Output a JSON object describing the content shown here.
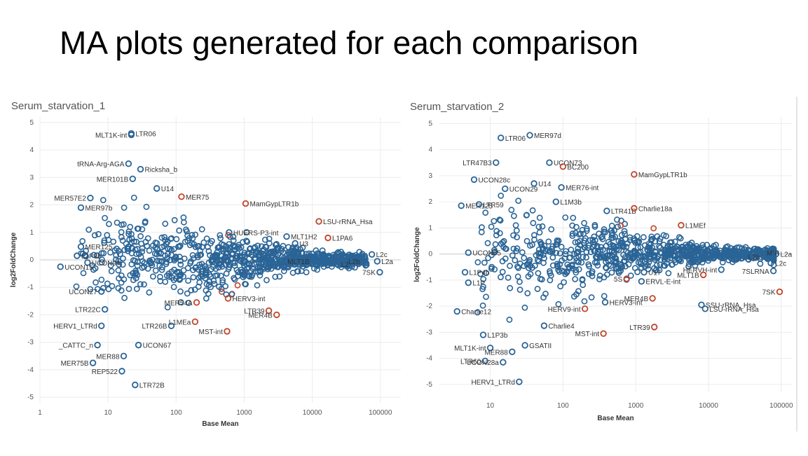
{
  "slide": {
    "title": "MA plots generated for each comparison"
  },
  "colors": {
    "not_significant": "#2a6496",
    "significant": "#c0452b"
  },
  "chart_data": [
    {
      "type": "scatter",
      "title": "Serum_starvation_1",
      "xlabel": "Base Mean",
      "ylabel": "log2FoldChange",
      "x_scale": "log",
      "xlim": [
        1,
        200000
      ],
      "ylim": [
        -5.2,
        5.2
      ],
      "x_ticks": [
        1,
        10,
        100,
        1000,
        10000,
        100000
      ],
      "x_tick_labels": [
        "1",
        "10",
        "100",
        "1000",
        "10000",
        "100000"
      ],
      "y_ticks": [
        5,
        4,
        3,
        2,
        1,
        0,
        -1,
        -2,
        -3,
        -4,
        -5
      ],
      "grid": true,
      "labeled_points": [
        {
          "label": "LTR06",
          "x": 22,
          "y": 4.6,
          "sig": false
        },
        {
          "label": "MLT1K-int",
          "x": 22,
          "y": 4.55,
          "sig": false
        },
        {
          "label": "tRNA-Arg-AGA",
          "x": 20,
          "y": 3.5,
          "sig": false
        },
        {
          "label": "Ricksha_b",
          "x": 30,
          "y": 3.3,
          "sig": false
        },
        {
          "label": "MER101B",
          "x": 23,
          "y": 2.95,
          "sig": false
        },
        {
          "label": "MER75",
          "x": 120,
          "y": 2.3,
          "sig": true
        },
        {
          "label": "MER57E2",
          "x": 5.5,
          "y": 2.25,
          "sig": false
        },
        {
          "label": "U14",
          "x": 52,
          "y": 2.6,
          "sig": false
        },
        {
          "label": "MamGypLTR1b",
          "x": 1050,
          "y": 2.05,
          "sig": true
        },
        {
          "label": "MER97b",
          "x": 4,
          "y": 1.9,
          "sig": false
        },
        {
          "label": "HUERS-P3-int",
          "x": 600,
          "y": 1.0,
          "sig": false
        },
        {
          "label": "LSU-rRNA_Hsa",
          "x": 12500,
          "y": 1.4,
          "sig": true
        },
        {
          "label": "MLT1H2",
          "x": 4200,
          "y": 0.85,
          "sig": false
        },
        {
          "label": "U3",
          "x": 5600,
          "y": 0.6,
          "sig": false
        },
        {
          "label": "L1PA6",
          "x": 17000,
          "y": 0.8,
          "sig": true
        },
        {
          "label": "MER125",
          "x": 4,
          "y": 0.48,
          "sig": false
        },
        {
          "label": "L2c",
          "x": 75000,
          "y": 0.2,
          "sig": false
        },
        {
          "label": "L1P3b",
          "x": 3.5,
          "y": 0.15,
          "sig": false
        },
        {
          "label": "L2a",
          "x": 90000,
          "y": -0.05,
          "sig": false
        },
        {
          "label": "UCON94",
          "x": 5,
          "y": -0.1,
          "sig": false
        },
        {
          "label": "UCON15",
          "x": 2,
          "y": -0.25,
          "sig": false
        },
        {
          "label": "L2b",
          "x": 58000,
          "y": -0.05,
          "sig": false
        },
        {
          "label": "MLT1B",
          "x": 10500,
          "y": -0.05,
          "sig": false
        },
        {
          "label": "L2",
          "x": 23000,
          "y": -0.15,
          "sig": false
        },
        {
          "label": "7SK",
          "x": 98000,
          "y": -0.45,
          "sig": false
        },
        {
          "label": "UCON27",
          "x": 8,
          "y": -1.15,
          "sig": false
        },
        {
          "label": "HERV3-int",
          "x": 580,
          "y": -1.4,
          "sig": true
        },
        {
          "label": "LTR22C",
          "x": 9,
          "y": -1.8,
          "sig": false
        },
        {
          "label": "MER54A",
          "x": 200,
          "y": -1.55,
          "sig": true
        },
        {
          "label": "LTR39",
          "x": 2300,
          "y": -1.85,
          "sig": true
        },
        {
          "label": "MER4B",
          "x": 3000,
          "y": -2.0,
          "sig": true
        },
        {
          "label": "HERV1_LTRd",
          "x": 8,
          "y": -2.4,
          "sig": false
        },
        {
          "label": "LTR26B",
          "x": 85,
          "y": -2.4,
          "sig": false
        },
        {
          "label": "L1MEa",
          "x": 190,
          "y": -2.25,
          "sig": true
        },
        {
          "label": "MST-int",
          "x": 560,
          "y": -2.6,
          "sig": true
        },
        {
          "label": "UCON67",
          "x": 28,
          "y": -3.1,
          "sig": false
        },
        {
          "label": "_CATTC_n",
          "x": 7,
          "y": -3.1,
          "sig": false
        },
        {
          "label": "MER88",
          "x": 17,
          "y": -3.5,
          "sig": false
        },
        {
          "label": "MER75B",
          "x": 6,
          "y": -3.75,
          "sig": false
        },
        {
          "label": "REP522",
          "x": 16,
          "y": -4.05,
          "sig": false
        },
        {
          "label": "LTR72B",
          "x": 25,
          "y": -4.55,
          "sig": false
        }
      ]
    },
    {
      "type": "scatter",
      "title": "Serum_starvation_2",
      "xlabel": "Base Mean",
      "ylabel": "log2FoldChange",
      "x_scale": "log",
      "xlim": [
        2,
        140000
      ],
      "ylim": [
        -5.3,
        5.25
      ],
      "x_ticks": [
        10,
        100,
        1000,
        10000,
        100000
      ],
      "x_tick_labels": [
        "10",
        "100",
        "1000",
        "10000",
        "100000"
      ],
      "y_ticks": [
        5,
        4,
        3,
        2,
        1,
        0,
        -1,
        -2,
        -3,
        -4,
        -5
      ],
      "grid": true,
      "labeled_points": [
        {
          "label": "MER97d",
          "x": 35,
          "y": 4.55,
          "sig": false
        },
        {
          "label": "LTR06",
          "x": 14,
          "y": 4.45,
          "sig": false
        },
        {
          "label": "LTR47B3",
          "x": 12,
          "y": 3.5,
          "sig": false
        },
        {
          "label": "UCON73",
          "x": 65,
          "y": 3.5,
          "sig": false
        },
        {
          "label": "BC200",
          "x": 100,
          "y": 3.35,
          "sig": true
        },
        {
          "label": "MamGypLTR1b",
          "x": 950,
          "y": 3.05,
          "sig": true
        },
        {
          "label": "UCON28c",
          "x": 6,
          "y": 2.85,
          "sig": false
        },
        {
          "label": "U14",
          "x": 40,
          "y": 2.7,
          "sig": false
        },
        {
          "label": "MER76-int",
          "x": 95,
          "y": 2.55,
          "sig": false
        },
        {
          "label": "UCON29",
          "x": 16,
          "y": 2.5,
          "sig": false
        },
        {
          "label": "MER125",
          "x": 4,
          "y": 1.85,
          "sig": false
        },
        {
          "label": "LTR59",
          "x": 7,
          "y": 1.9,
          "sig": false
        },
        {
          "label": "L1M3b",
          "x": 80,
          "y": 2.0,
          "sig": false
        },
        {
          "label": "LTR41B",
          "x": 400,
          "y": 1.65,
          "sig": false
        },
        {
          "label": "Charlie18a",
          "x": 950,
          "y": 1.75,
          "sig": true
        },
        {
          "label": "L1MEf",
          "x": 4200,
          "y": 1.1,
          "sig": true
        },
        {
          "label": "MIR",
          "x": 55000,
          "y": 0.05,
          "sig": false
        },
        {
          "label": "UCON85",
          "x": 5,
          "y": 0.05,
          "sig": false
        },
        {
          "label": "L2a",
          "x": 85000,
          "y": 0.0,
          "sig": false
        },
        {
          "label": "L2b",
          "x": 58000,
          "y": -0.1,
          "sig": false
        },
        {
          "label": "L2c",
          "x": 72000,
          "y": -0.35,
          "sig": false
        },
        {
          "label": "L1P4b",
          "x": 4.5,
          "y": -0.7,
          "sig": false
        },
        {
          "label": "U17",
          "x": 1300,
          "y": -0.7,
          "sig": false
        },
        {
          "label": "HERVH-int",
          "x": 15000,
          "y": -0.6,
          "sig": false
        },
        {
          "label": "7SLRNA",
          "x": 78000,
          "y": -0.65,
          "sig": false
        },
        {
          "label": "L1P",
          "x": 5,
          "y": -1.1,
          "sig": false
        },
        {
          "label": "5S",
          "x": 750,
          "y": -0.95,
          "sig": true
        },
        {
          "label": "ERVL-E-int",
          "x": 1200,
          "y": -1.05,
          "sig": false
        },
        {
          "label": "MLT1B",
          "x": 8500,
          "y": -0.8,
          "sig": true
        },
        {
          "label": "7SK",
          "x": 95000,
          "y": -1.45,
          "sig": true
        },
        {
          "label": "SSU-rRNA_Hsa",
          "x": 8000,
          "y": -1.95,
          "sig": false
        },
        {
          "label": "Charlie12",
          "x": 3.5,
          "y": -2.2,
          "sig": false
        },
        {
          "label": "HERV3-int",
          "x": 380,
          "y": -1.85,
          "sig": false
        },
        {
          "label": "MER4B",
          "x": 1700,
          "y": -1.7,
          "sig": true
        },
        {
          "label": "HERV9-int",
          "x": 200,
          "y": -2.1,
          "sig": true
        },
        {
          "label": "LSU-rRNA_Hsa",
          "x": 9000,
          "y": -2.1,
          "sig": false
        },
        {
          "label": "Charlie4",
          "x": 55,
          "y": -2.75,
          "sig": false
        },
        {
          "label": "L1P3b",
          "x": 8,
          "y": -3.1,
          "sig": false
        },
        {
          "label": "MST-int",
          "x": 360,
          "y": -3.05,
          "sig": true
        },
        {
          "label": "LTR39",
          "x": 1800,
          "y": -2.8,
          "sig": true
        },
        {
          "label": "GSATII",
          "x": 30,
          "y": -3.5,
          "sig": false
        },
        {
          "label": "MLT1K-int",
          "x": 10,
          "y": -3.6,
          "sig": false
        },
        {
          "label": "MER88",
          "x": 20,
          "y": -3.75,
          "sig": false
        },
        {
          "label": "LTR60",
          "x": 8.5,
          "y": -4.1,
          "sig": false
        },
        {
          "label": "UCON28a",
          "x": 15,
          "y": -4.15,
          "sig": false
        },
        {
          "label": "HERV1_LTRd",
          "x": 25,
          "y": -4.9,
          "sig": false
        }
      ]
    }
  ]
}
